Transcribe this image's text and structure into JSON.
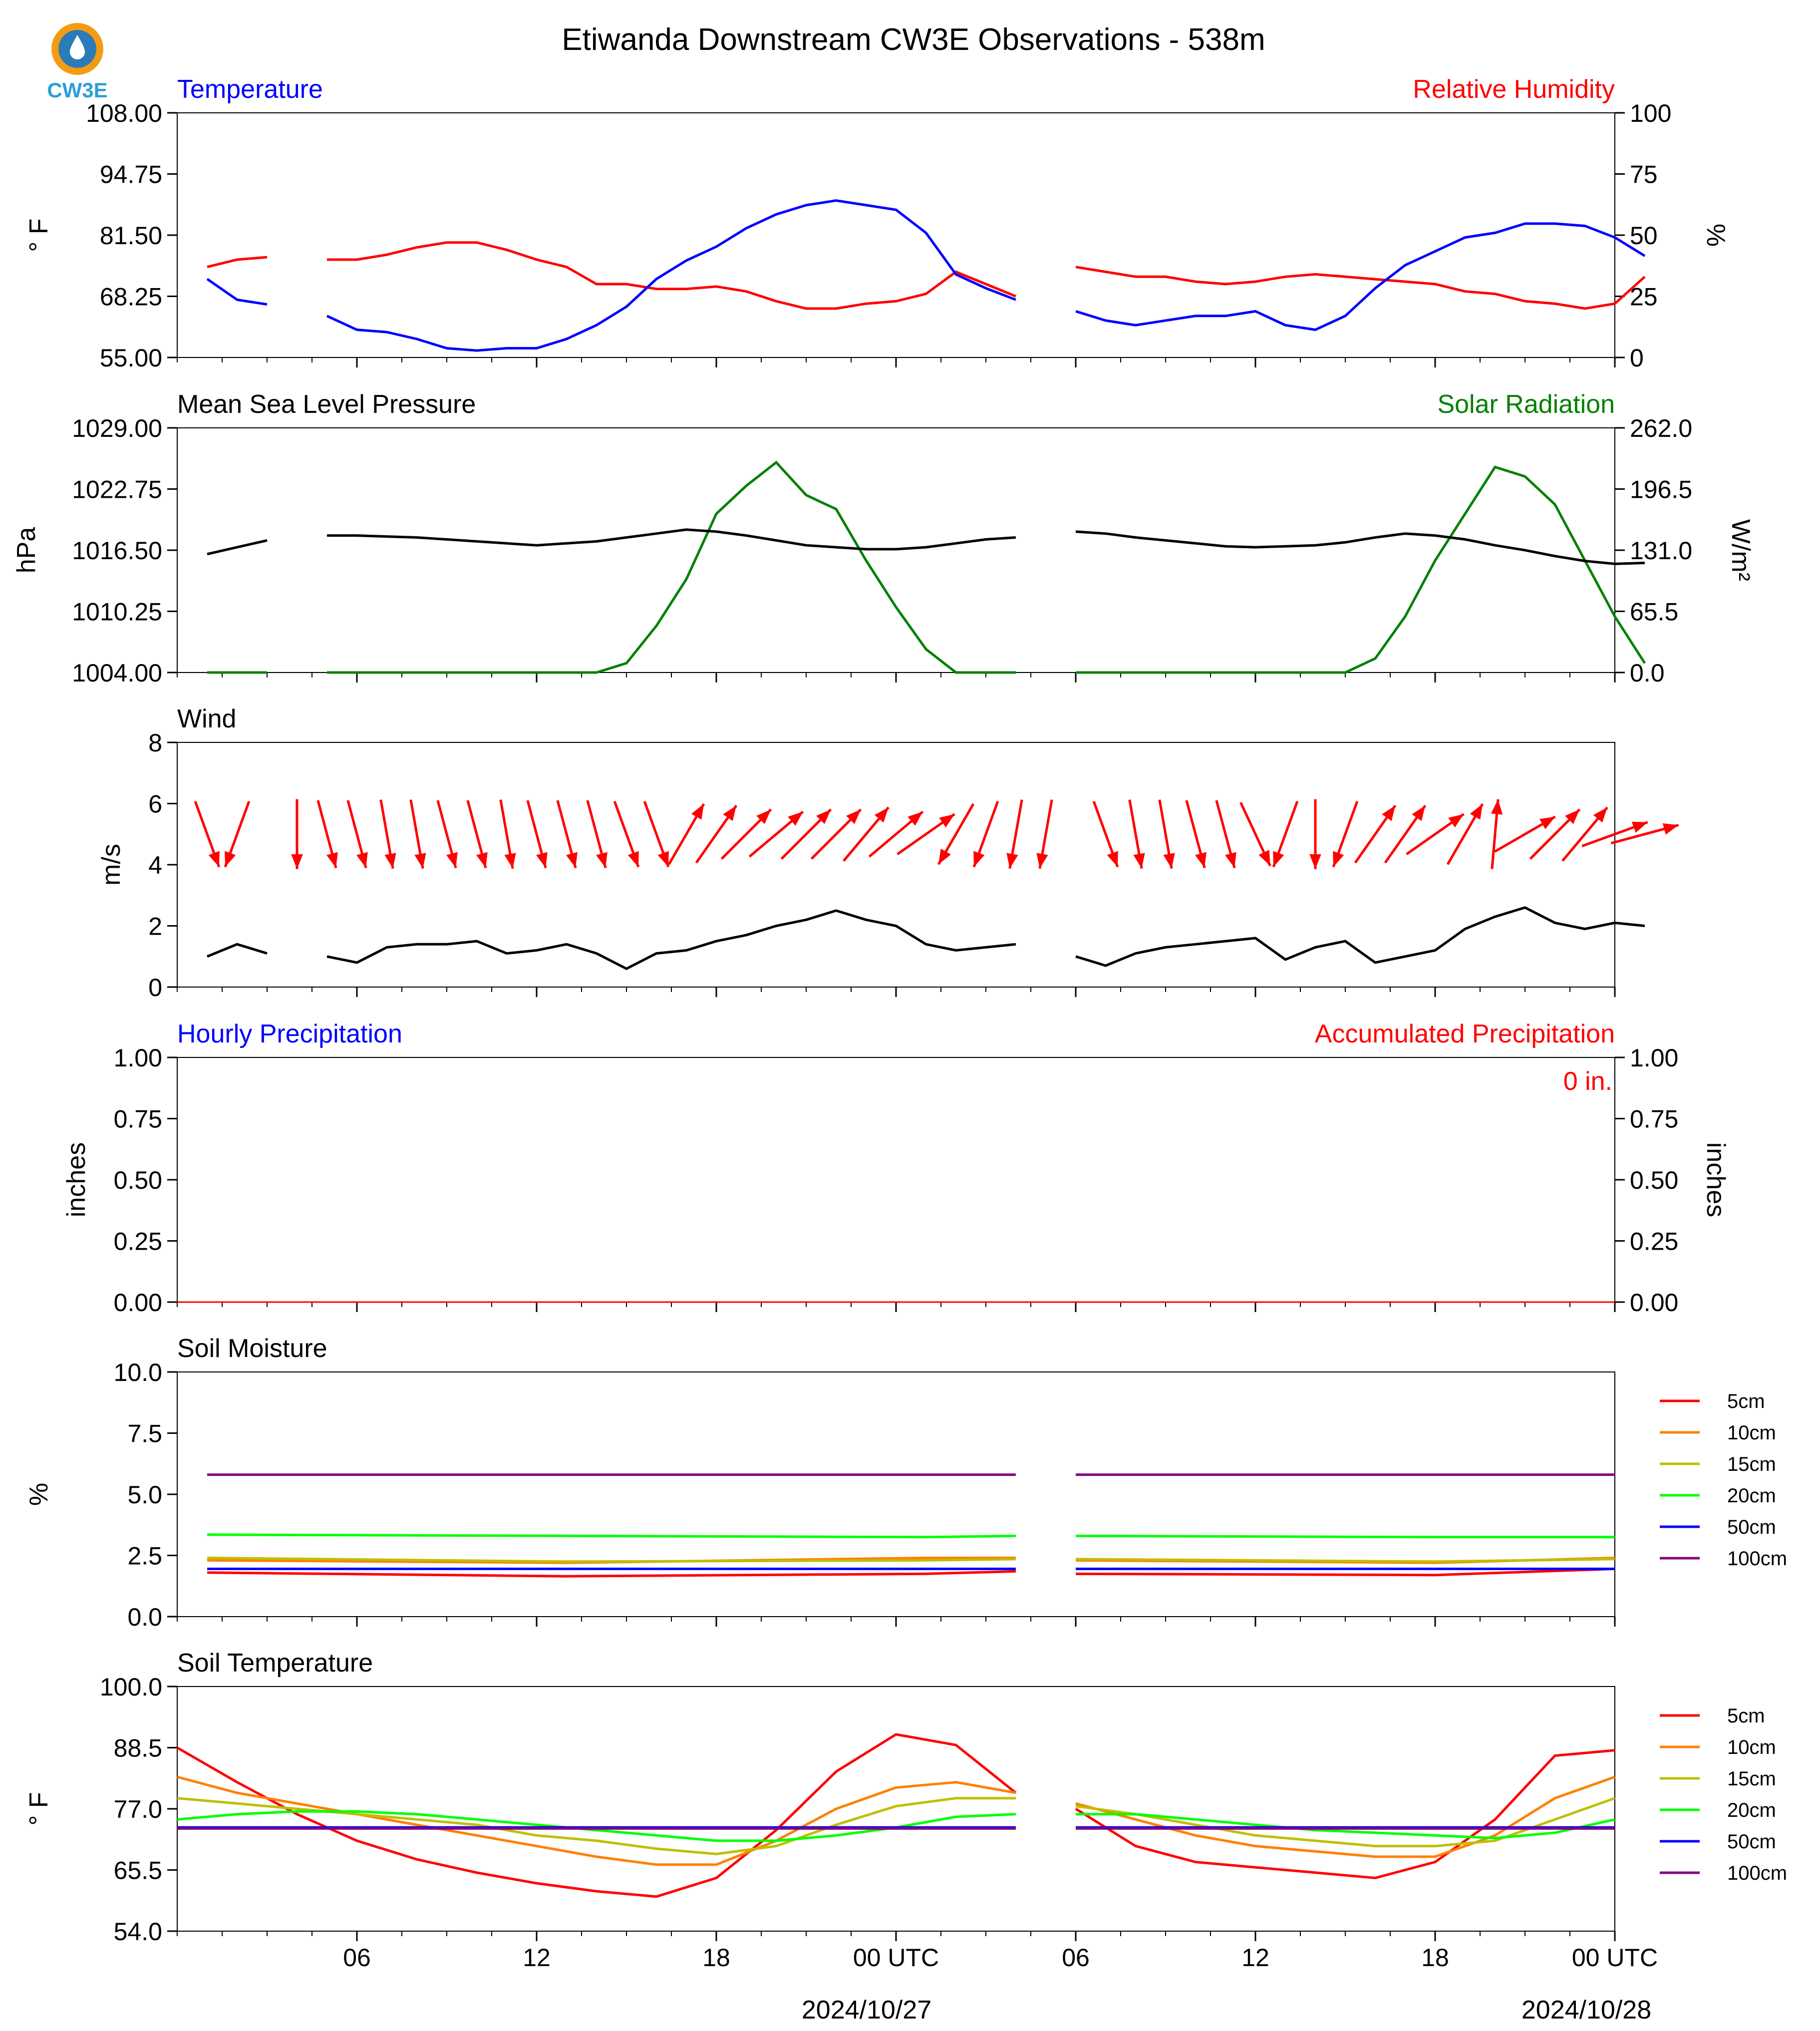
{
  "header": {
    "title": "Etiwanda Downstream CW3E Observations - 538m",
    "logo_text": "CW3E"
  },
  "x_axis": {
    "ticks": [
      "06",
      "12",
      "18",
      "00 UTC",
      "06",
      "12",
      "18",
      "00 UTC"
    ],
    "dates": [
      "2024/10/27",
      "2024/10/28"
    ]
  },
  "colors": {
    "temperature": "#0000ff",
    "humidity": "#ff0000",
    "pressure": "#000000",
    "solar": "#008000",
    "wind_arrow": "#ff0000",
    "wind_speed": "#000000",
    "soil_5cm": "#ff0000",
    "soil_10cm": "#ff8000",
    "soil_15cm": "#bfbf00",
    "soil_20cm": "#00ff00",
    "soil_50cm": "#0000ff",
    "soil_100cm": "#800080"
  },
  "chart_data": [
    {
      "id": "temp-rh",
      "type": "line",
      "title_left": "Temperature",
      "title_right": "Relative Humidity",
      "ylabel_left": "° F",
      "ylabel_right": "%",
      "ylim_left": [
        55,
        108
      ],
      "ylim_right": [
        0,
        100
      ],
      "yticks_left": [
        "108.00",
        "94.75",
        "81.50",
        "68.25",
        "55.00"
      ],
      "yticks_right": [
        "100",
        "75",
        "50",
        "25",
        "0"
      ],
      "x_hours": [
        1,
        2,
        3,
        4,
        5,
        6,
        7,
        8,
        9,
        10,
        11,
        12,
        13,
        14,
        15,
        16,
        17,
        18,
        19,
        20,
        21,
        22,
        23,
        24,
        25,
        26,
        27,
        28,
        29,
        30,
        31,
        32,
        33,
        34,
        35,
        36,
        37,
        38,
        39,
        40,
        41,
        42,
        43,
        44,
        45,
        46,
        47,
        48,
        49
      ],
      "series": [
        {
          "name": "Temperature",
          "axis": "left",
          "values": [
            72,
            67.5,
            66.5,
            null,
            64,
            61,
            60.5,
            59,
            57,
            56.5,
            57,
            57,
            59,
            62,
            66,
            72,
            76,
            79,
            83,
            86,
            88,
            89,
            88,
            87,
            82,
            73,
            70,
            67.5,
            null,
            65,
            63,
            62,
            63,
            64,
            64,
            65,
            62,
            61,
            64,
            70,
            75,
            78,
            81,
            82,
            84,
            84,
            83.5,
            81,
            77
          ]
        },
        {
          "name": "Relative Humidity",
          "axis": "right",
          "values": [
            37,
            40,
            41,
            null,
            40,
            40,
            42,
            45,
            47,
            47,
            44,
            40,
            37,
            30,
            30,
            28,
            28,
            29,
            27,
            23,
            20,
            20,
            22,
            23,
            26,
            35,
            30,
            25,
            null,
            37,
            35,
            33,
            33,
            31,
            30,
            31,
            33,
            34,
            33,
            32,
            31,
            30,
            27,
            26,
            23,
            22,
            20,
            22,
            33
          ]
        }
      ]
    },
    {
      "id": "pressure-solar",
      "type": "line",
      "title_left": "Mean Sea Level Pressure",
      "title_right": "Solar Radiation",
      "ylabel_left": "hPa",
      "ylabel_right": "W/m²",
      "ylim_left": [
        1004,
        1029
      ],
      "ylim_right": [
        0,
        262
      ],
      "yticks_left": [
        "1029.00",
        "1022.75",
        "1016.50",
        "1010.25",
        "1004.00"
      ],
      "yticks_right": [
        "262.0",
        "196.5",
        "131.0",
        "65.5",
        "0.0"
      ],
      "x_hours": [
        1,
        2,
        3,
        4,
        5,
        6,
        7,
        8,
        9,
        10,
        11,
        12,
        13,
        14,
        15,
        16,
        17,
        18,
        19,
        20,
        21,
        22,
        23,
        24,
        25,
        26,
        27,
        28,
        29,
        30,
        31,
        32,
        33,
        34,
        35,
        36,
        37,
        38,
        39,
        40,
        41,
        42,
        43,
        44,
        45,
        46,
        47,
        48,
        49
      ],
      "series": [
        {
          "name": "Mean Sea Level Pressure",
          "axis": "left",
          "values": [
            1016.1,
            1016.8,
            1017.5,
            null,
            1018.0,
            1018.0,
            1017.9,
            1017.8,
            1017.6,
            1017.4,
            1017.2,
            1017.0,
            1017.2,
            1017.4,
            1017.8,
            1018.2,
            1018.6,
            1018.4,
            1018.0,
            1017.5,
            1017.0,
            1016.8,
            1016.6,
            1016.6,
            1016.8,
            1017.2,
            1017.6,
            1017.8,
            null,
            1018.4,
            1018.2,
            1017.8,
            1017.5,
            1017.2,
            1016.9,
            1016.8,
            1016.9,
            1017.0,
            1017.3,
            1017.8,
            1018.2,
            1018.0,
            1017.6,
            1017.0,
            1016.5,
            1015.9,
            1015.4,
            1015.1,
            1015.2
          ]
        },
        {
          "name": "Solar Radiation",
          "axis": "right",
          "values": [
            0,
            0,
            0,
            null,
            0,
            0,
            0,
            0,
            0,
            0,
            0,
            0,
            0,
            0,
            10,
            50,
            100,
            170,
            200,
            225,
            190,
            175,
            120,
            70,
            25,
            0,
            0,
            0,
            null,
            0,
            0,
            0,
            0,
            0,
            0,
            0,
            0,
            0,
            0,
            15,
            60,
            120,
            170,
            220,
            210,
            180,
            120,
            60,
            10
          ]
        }
      ]
    },
    {
      "id": "wind",
      "type": "line",
      "title_left": "Wind",
      "ylabel_left": "m/s",
      "ylim_left": [
        0,
        8
      ],
      "yticks_left": [
        "8",
        "6",
        "4",
        "2",
        "0"
      ],
      "x_hours": [
        1,
        2,
        3,
        4,
        5,
        6,
        7,
        8,
        9,
        10,
        11,
        12,
        13,
        14,
        15,
        16,
        17,
        18,
        19,
        20,
        21,
        22,
        23,
        24,
        25,
        26,
        27,
        28,
        29,
        30,
        31,
        32,
        33,
        34,
        35,
        36,
        37,
        38,
        39,
        40,
        41,
        42,
        43,
        44,
        45,
        46,
        47,
        48,
        49
      ],
      "series": [
        {
          "name": "Wind Speed",
          "axis": "left",
          "values": [
            1.0,
            1.4,
            1.1,
            null,
            1.0,
            0.8,
            1.3,
            1.4,
            1.4,
            1.5,
            1.1,
            1.2,
            1.4,
            1.1,
            0.6,
            1.1,
            1.2,
            1.5,
            1.7,
            2.0,
            2.2,
            2.5,
            2.2,
            2.0,
            1.4,
            1.2,
            1.3,
            1.4,
            null,
            1.0,
            0.7,
            1.1,
            1.3,
            1.4,
            1.5,
            1.6,
            0.9,
            1.3,
            1.5,
            0.8,
            1.0,
            1.2,
            1.9,
            2.3,
            2.6,
            2.1,
            1.9,
            2.1,
            2.0
          ]
        }
      ],
      "arrows_dir_deg": [
        160,
        200,
        null,
        180,
        165,
        165,
        170,
        170,
        165,
        165,
        170,
        165,
        165,
        165,
        160,
        160,
        30,
        35,
        45,
        50,
        45,
        45,
        40,
        50,
        55,
        210,
        200,
        190,
        190,
        null,
        160,
        170,
        170,
        165,
        165,
        155,
        200,
        180,
        200,
        35,
        35,
        55,
        30,
        5,
        60,
        45,
        40,
        70,
        75
      ]
    },
    {
      "id": "precip",
      "type": "line",
      "title_left": "Hourly Precipitation",
      "title_right": "Accumulated Precipitation",
      "ylabel_left": "inches",
      "ylabel_right": "inches",
      "ylim_left": [
        0,
        1
      ],
      "ylim_right": [
        0,
        1
      ],
      "yticks_left": [
        "1.00",
        "0.75",
        "0.50",
        "0.25",
        "0.00"
      ],
      "yticks_right": [
        "1.00",
        "0.75",
        "0.50",
        "0.25",
        "0.00"
      ],
      "annotation": "0 in.",
      "x_hours": [
        0,
        48
      ],
      "series": [
        {
          "name": "Hourly Precipitation",
          "axis": "left",
          "values": [
            0,
            0
          ]
        },
        {
          "name": "Accumulated Precipitation",
          "axis": "right",
          "values": [
            0,
            0
          ]
        }
      ]
    },
    {
      "id": "soil-moisture",
      "type": "line",
      "title_left": "Soil Moisture",
      "ylabel_left": "%",
      "ylim_left": [
        0,
        10
      ],
      "yticks_left": [
        "10.0",
        "7.5",
        "5.0",
        "2.5",
        "0.0"
      ],
      "x_hours": [
        1,
        13,
        25,
        28
      ],
      "x_hours_b": [
        30,
        42,
        48
      ],
      "series": [
        {
          "name": "5cm",
          "values": [
            1.8,
            1.65,
            1.75,
            1.85
          ],
          "values_b": [
            1.75,
            1.7,
            1.95
          ]
        },
        {
          "name": "10cm",
          "values": [
            2.3,
            2.2,
            2.4,
            2.4
          ],
          "values_b": [
            2.3,
            2.2,
            2.4
          ]
        },
        {
          "name": "15cm",
          "values": [
            2.4,
            2.25,
            2.3,
            2.35
          ],
          "values_b": [
            2.35,
            2.25,
            2.35
          ]
        },
        {
          "name": "20cm",
          "values": [
            3.35,
            3.3,
            3.25,
            3.3
          ],
          "values_b": [
            3.3,
            3.25,
            3.25
          ]
        },
        {
          "name": "50cm",
          "values": [
            1.95,
            1.95,
            1.95,
            1.95
          ],
          "values_b": [
            1.95,
            1.95,
            1.95
          ]
        },
        {
          "name": "100cm",
          "values": [
            5.8,
            5.8,
            5.8,
            5.8
          ],
          "values_b": [
            5.8,
            5.8,
            5.8
          ]
        }
      ],
      "legend": [
        "5cm",
        "10cm",
        "15cm",
        "20cm",
        "50cm",
        "100cm"
      ]
    },
    {
      "id": "soil-temp",
      "type": "line",
      "title_left": "Soil Temperature",
      "ylabel_left": "° F",
      "ylim_left": [
        54,
        100
      ],
      "yticks_left": [
        "100.0",
        "88.5",
        "77.0",
        "65.5",
        "54.0"
      ],
      "x_hours": [
        0,
        2,
        4,
        6,
        8,
        10,
        12,
        14,
        16,
        18,
        20,
        22,
        24,
        26,
        28
      ],
      "x_hours_b": [
        30,
        32,
        34,
        36,
        38,
        40,
        42,
        44,
        46,
        48
      ],
      "series": [
        {
          "name": "5cm",
          "values": [
            88.5,
            82,
            76,
            71,
            67.5,
            65,
            63,
            61.5,
            60.5,
            64,
            73,
            84,
            91,
            89,
            80
          ],
          "values_b": [
            77,
            70,
            67,
            66,
            65,
            64,
            67,
            75,
            87,
            88
          ]
        },
        {
          "name": "10cm",
          "values": [
            83,
            80,
            78,
            76,
            74,
            72,
            70,
            68,
            66.5,
            66.5,
            71,
            77,
            81,
            82,
            80
          ],
          "values_b": [
            78,
            75,
            72,
            70,
            69,
            68,
            68,
            72,
            79,
            83
          ]
        },
        {
          "name": "15cm",
          "values": [
            79,
            78,
            77,
            76,
            75,
            74,
            72,
            71,
            69.5,
            68.5,
            70,
            74,
            77.5,
            79,
            79
          ],
          "values_b": [
            77.5,
            76,
            74,
            72,
            71,
            70,
            70,
            71,
            75,
            79
          ]
        },
        {
          "name": "20cm",
          "values": [
            75,
            76,
            76.5,
            76.5,
            76,
            75,
            74,
            73,
            72,
            71,
            71,
            72,
            73.5,
            75.5,
            76
          ],
          "values_b": [
            76,
            76,
            75,
            74,
            73,
            72.5,
            72,
            71.5,
            72.5,
            75
          ]
        },
        {
          "name": "50cm",
          "values": [
            73.5,
            73.5,
            73.5,
            73.5,
            73.5,
            73.5,
            73.5,
            73.5,
            73.5,
            73.5,
            73.5,
            73.5,
            73.5,
            73.5,
            73.5
          ],
          "values_b": [
            73.5,
            73.5,
            73.5,
            73.5,
            73.5,
            73.5,
            73.5,
            73.5,
            73.5,
            73.5
          ]
        },
        {
          "name": "100cm",
          "values": [
            73.3,
            73.3,
            73.3,
            73.3,
            73.3,
            73.3,
            73.3,
            73.3,
            73.3,
            73.3,
            73.3,
            73.3,
            73.3,
            73.3,
            73.3
          ],
          "values_b": [
            73.3,
            73.3,
            73.3,
            73.3,
            73.3,
            73.3,
            73.3,
            73.3,
            73.3,
            73.3
          ]
        }
      ],
      "legend": [
        "5cm",
        "10cm",
        "15cm",
        "20cm",
        "50cm",
        "100cm"
      ]
    }
  ]
}
